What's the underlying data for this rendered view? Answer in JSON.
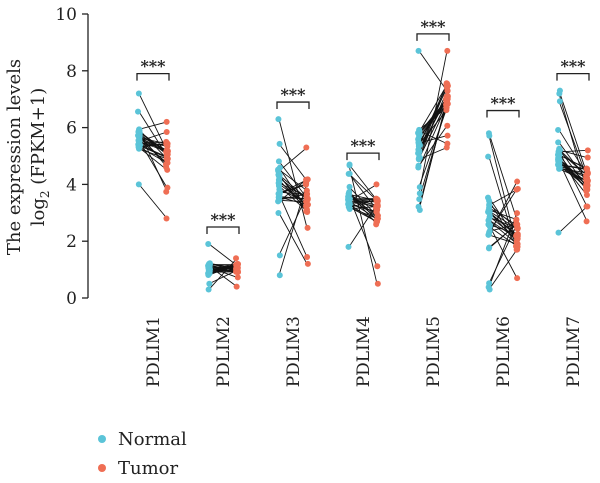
{
  "chart_data": {
    "type": "scatter",
    "subtype": "paired-dot",
    "ylabel_line1": "The expression levels",
    "ylabel_line2_prefix": "log",
    "ylabel_line2_sub": "2",
    "ylabel_line2_suffix": " (FPKM+1)",
    "ylim": [
      0,
      10
    ],
    "yticks": [
      "0",
      "2",
      "4",
      "6",
      "8",
      "10"
    ],
    "grid": false,
    "legend_position": "bottom-left",
    "categories": [
      "PDLIM1",
      "PDLIM2",
      "PDLIM3",
      "PDLIM4",
      "PDLIM5",
      "PDLIM6",
      "PDLIM7"
    ],
    "significance": [
      "***",
      "***",
      "***",
      "***",
      "***",
      "***",
      "***"
    ],
    "series": [
      {
        "name": "Normal",
        "color": "#5bc4d8"
      },
      {
        "name": "Tumor",
        "color": "#ef6e54"
      }
    ],
    "groups": [
      {
        "category": "PDLIM1",
        "normal": {
          "min": 4.0,
          "q1": 5.2,
          "median": 5.6,
          "q3": 6.0,
          "max": 7.2
        },
        "tumor": {
          "min": 2.8,
          "q1": 4.5,
          "median": 5.0,
          "q3": 5.5,
          "max": 6.2
        },
        "bracket_y": 7.9
      },
      {
        "category": "PDLIM2",
        "normal": {
          "min": 0.3,
          "q1": 0.8,
          "median": 1.0,
          "q3": 1.2,
          "max": 1.9
        },
        "tumor": {
          "min": 0.4,
          "q1": 0.9,
          "median": 1.05,
          "q3": 1.2,
          "max": 1.4
        },
        "bracket_y": 2.5
      },
      {
        "category": "PDLIM3",
        "normal": {
          "min": 0.8,
          "q1": 3.4,
          "median": 4.0,
          "q3": 4.6,
          "max": 6.3
        },
        "tumor": {
          "min": 1.2,
          "q1": 3.0,
          "median": 3.6,
          "q3": 4.2,
          "max": 5.3
        },
        "bracket_y": 6.9
      },
      {
        "category": "PDLIM4",
        "normal": {
          "min": 1.8,
          "q1": 3.1,
          "median": 3.4,
          "q3": 3.8,
          "max": 4.7
        },
        "tumor": {
          "min": 0.5,
          "q1": 2.5,
          "median": 3.1,
          "q3": 3.5,
          "max": 4.0
        },
        "bracket_y": 5.1
      },
      {
        "category": "PDLIM5",
        "normal": {
          "min": 3.1,
          "q1": 4.8,
          "median": 5.3,
          "q3": 6.0,
          "max": 8.7
        },
        "tumor": {
          "min": 5.3,
          "q1": 6.6,
          "median": 7.0,
          "q3": 7.6,
          "max": 8.7
        },
        "bracket_y": 9.3
      },
      {
        "category": "PDLIM6",
        "normal": {
          "min": 0.3,
          "q1": 2.2,
          "median": 2.8,
          "q3": 3.6,
          "max": 5.8
        },
        "tumor": {
          "min": 0.7,
          "q1": 1.6,
          "median": 2.2,
          "q3": 2.8,
          "max": 4.1
        },
        "bracket_y": 6.6
      },
      {
        "category": "PDLIM7",
        "normal": {
          "min": 2.3,
          "q1": 4.5,
          "median": 5.0,
          "q3": 5.5,
          "max": 7.3
        },
        "tumor": {
          "min": 2.7,
          "q1": 3.7,
          "median": 4.2,
          "q3": 4.6,
          "max": 5.2
        },
        "bracket_y": 7.9
      }
    ],
    "points_per_group": 30
  }
}
